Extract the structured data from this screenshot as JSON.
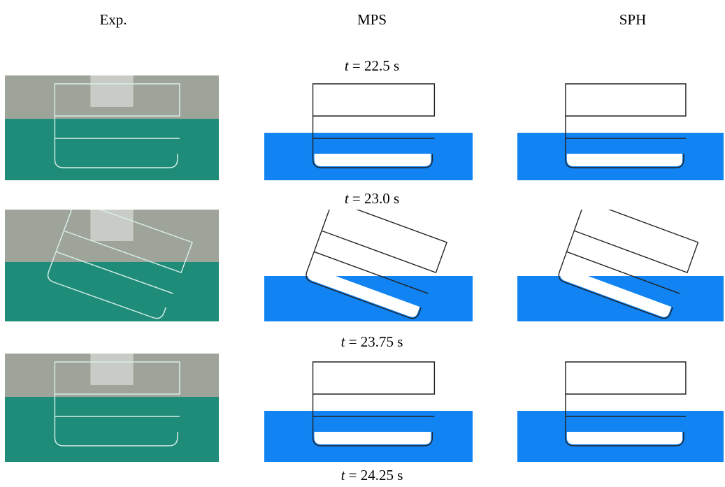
{
  "columns": [
    "Exp.",
    "MPS",
    "SPH"
  ],
  "times": [
    {
      "variable": "t",
      "value": "= 22.5 s"
    },
    {
      "variable": "t",
      "value": "= 23.0 s"
    },
    {
      "variable": "t",
      "value": "= 23.75 s"
    },
    {
      "variable": "t",
      "value": "= 24.25 s"
    }
  ]
}
